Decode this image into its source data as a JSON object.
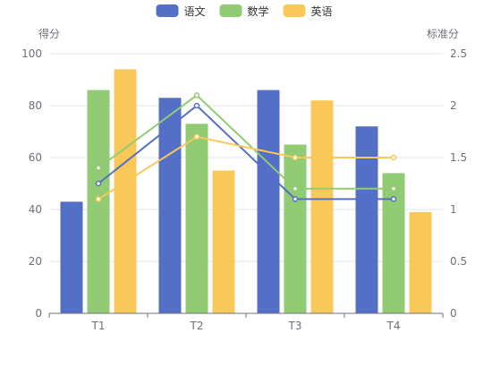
{
  "chart_data": {
    "type": "bar",
    "categories": [
      "T1",
      "T2",
      "T3",
      "T4"
    ],
    "series": [
      {
        "name": "语文",
        "color": "#5470c6",
        "values": [
          43,
          83,
          86,
          72
        ]
      },
      {
        "name": "数学",
        "color": "#91cc75",
        "values": [
          86,
          73,
          65,
          54
        ]
      },
      {
        "name": "英语",
        "color": "#fac858",
        "values": [
          94,
          55,
          82,
          39
        ]
      }
    ],
    "line_series": [
      {
        "name": "语文",
        "color": "#5470c6",
        "values": [
          1.25,
          2.0,
          1.1,
          1.1
        ]
      },
      {
        "name": "数学",
        "color": "#91cc75",
        "values": [
          1.4,
          2.1,
          1.2,
          1.2
        ]
      },
      {
        "name": "英语",
        "color": "#fac858",
        "values": [
          1.1,
          1.7,
          1.5,
          1.5
        ]
      }
    ],
    "ylabel": "得分",
    "ylabel_right": "标准分",
    "ylim": [
      0,
      100
    ],
    "ylim_right": [
      0,
      2.5
    ],
    "yticks": [
      "0",
      "20",
      "40",
      "60",
      "80",
      "100"
    ],
    "yticks_right": [
      "0",
      "0.5",
      "1",
      "1.5",
      "2",
      "2.5"
    ],
    "grid": true,
    "legend_position": "top-center"
  }
}
